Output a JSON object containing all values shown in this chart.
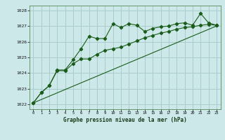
{
  "title": "Graphe pression niveau de la mer (hPa)",
  "bg_color": "#cce8e8",
  "grid_color": "#aacccc",
  "line_color": "#1a5c1a",
  "x_ticks": [
    0,
    1,
    2,
    3,
    4,
    5,
    6,
    7,
    8,
    9,
    10,
    11,
    12,
    13,
    14,
    15,
    16,
    17,
    18,
    19,
    20,
    21,
    22,
    23
  ],
  "ylim": [
    1021.7,
    1028.3
  ],
  "yticks": [
    1022,
    1023,
    1024,
    1025,
    1026,
    1027,
    1028
  ],
  "series1": [
    1022.1,
    1022.75,
    1023.2,
    1024.2,
    1024.2,
    1024.85,
    1025.55,
    1026.35,
    1026.2,
    1026.2,
    1027.15,
    1026.9,
    1027.15,
    1027.05,
    1026.65,
    1026.85,
    1026.95,
    1027.0,
    1027.15,
    1027.2,
    1027.05,
    1027.8,
    1027.2,
    1027.05
  ],
  "series2": [
    1022.1,
    1022.75,
    1023.2,
    1024.15,
    1024.15,
    1024.6,
    1024.9,
    1024.9,
    1025.2,
    1025.45,
    1025.55,
    1025.65,
    1025.85,
    1026.05,
    1026.25,
    1026.4,
    1026.55,
    1026.65,
    1026.8,
    1026.9,
    1026.95,
    1027.05,
    1027.1,
    1027.05
  ],
  "series3_x": [
    0,
    23
  ],
  "series3_y": [
    1022.1,
    1027.0
  ]
}
